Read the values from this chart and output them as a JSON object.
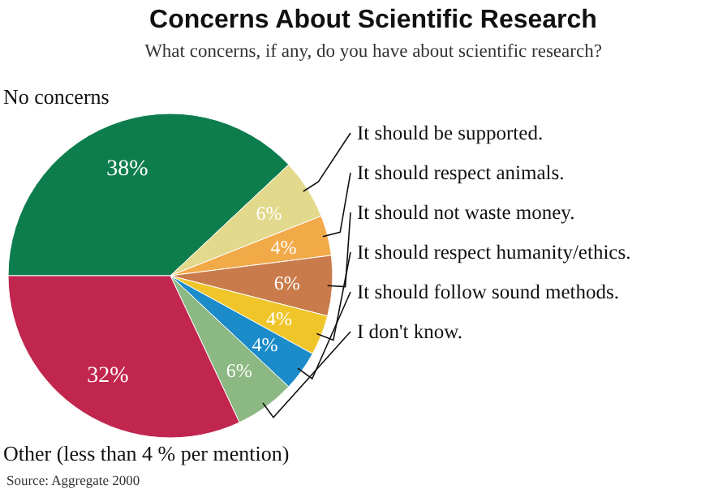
{
  "chart_data": {
    "type": "pie",
    "title": "Concerns About Scientific Research",
    "subtitle": "What concerns, if any, do you have about scientific research?",
    "categories": [
      "No concerns",
      "It should be supported.",
      "It should respect animals.",
      "It should not waste money.",
      "It should respect humanity/ethics.",
      "It should follow sound methods.",
      "I don't know.",
      "Other (less than 4 % per mention)"
    ],
    "values": [
      38,
      6,
      4,
      6,
      4,
      4,
      6,
      32
    ],
    "colors": [
      "#0e7d4e",
      "#e2d98c",
      "#f2a948",
      "#c97b4b",
      "#f0c52a",
      "#1b8bc9",
      "#8bb883",
      "#c1264f"
    ],
    "value_labels": [
      "38%",
      "6%",
      "4%",
      "6%",
      "4%",
      "4%",
      "6%",
      "32%"
    ],
    "annotations": [
      "Source: Aggregate 2000"
    ]
  }
}
